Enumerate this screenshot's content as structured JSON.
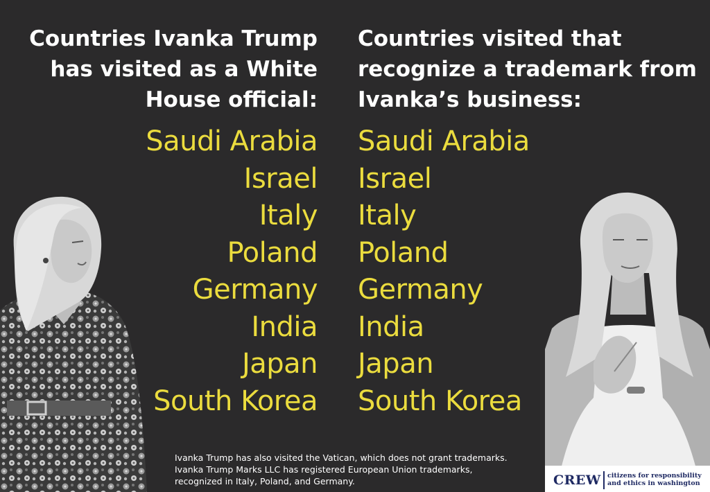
{
  "left_column": {
    "heading": "Countries Ivanka Trump has visited as a White House official:",
    "countries": [
      "Saudi Arabia",
      "Israel",
      "Italy",
      "Poland",
      "Germany",
      "India",
      "Japan",
      "South Korea"
    ]
  },
  "right_column": {
    "heading": "Countries visited that recognize a trademark from Ivanka’s business:",
    "countries": [
      "Saudi Arabia",
      "Israel",
      "Italy",
      "Poland",
      "Germany",
      "India",
      "Japan",
      "South Korea"
    ]
  },
  "footnote": {
    "line1": "Ivanka Trump has also visited the Vatican, which does not grant trademarks.",
    "line2": "Ivanka Trump Marks LLC has registered European Union trademarks,",
    "line3": "recognized in Italy, Poland, and Germany."
  },
  "logo": {
    "mark": "CREW",
    "tagline_line1": "citizens for responsibility",
    "tagline_line2": "and ethics in washington"
  },
  "colors": {
    "background": "#2b2a2b",
    "heading": "#ffffff",
    "country": "#ebdc3e",
    "logo_navy": "#1f2a63"
  }
}
